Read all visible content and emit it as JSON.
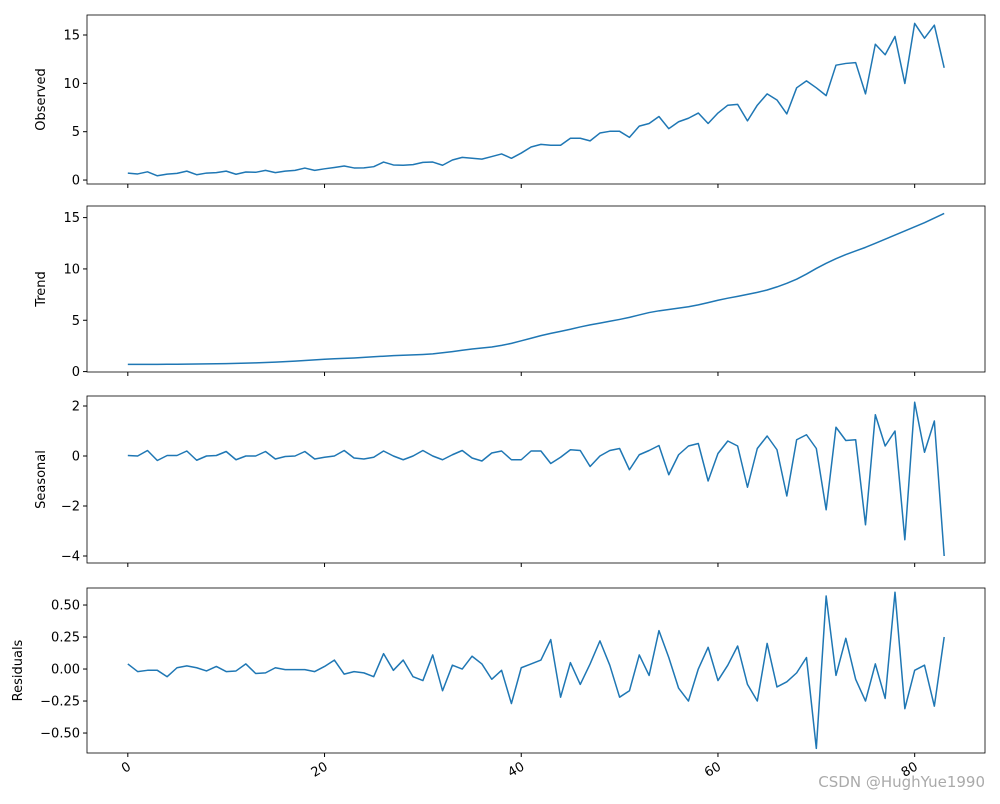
{
  "chart_data": [
    {
      "type": "line",
      "ylabel": "Observed",
      "color": "#1f77b4",
      "x": [
        0,
        1,
        2,
        3,
        4,
        5,
        6,
        7,
        8,
        9,
        10,
        11,
        12,
        13,
        14,
        15,
        16,
        17,
        18,
        19,
        20,
        21,
        22,
        23,
        24,
        25,
        26,
        27,
        28,
        29,
        30,
        31,
        32,
        33,
        34,
        35,
        36,
        37,
        38,
        39,
        40,
        41,
        42,
        43,
        44,
        45,
        46,
        47,
        48,
        49,
        50,
        51,
        52,
        53,
        54,
        55,
        56,
        57,
        58,
        59,
        60,
        61,
        62,
        63,
        64,
        65,
        66,
        67,
        68,
        69,
        70,
        71,
        72,
        73,
        74,
        75,
        76,
        77,
        78,
        79,
        80,
        81,
        82,
        83
      ],
      "values": [
        0.71,
        0.63,
        0.85,
        0.44,
        0.61,
        0.69,
        0.92,
        0.55,
        0.72,
        0.77,
        0.92,
        0.6,
        0.83,
        0.8,
        1,
        0.77,
        0.92,
        1,
        1.24,
        1,
        1.16,
        1.3,
        1.45,
        1.25,
        1.26,
        1.38,
        1.86,
        1.56,
        1.53,
        1.59,
        1.83,
        1.86,
        1.53,
        2.07,
        2.34,
        2.25,
        2.16,
        2.43,
        2.7,
        2.25,
        2.79,
        3.42,
        3.69,
        3.6,
        3.6,
        4.32,
        4.32,
        4.05,
        4.86,
        5.04,
        5.04,
        4.41,
        5.58,
        5.85,
        6.57,
        5.31,
        6.03,
        6.39,
        6.93,
        5.85,
        6.93,
        7.74,
        7.83,
        6.12,
        7.74,
        8.91,
        8.28,
        6.84,
        9.54,
        10.26,
        9.54,
        8.73,
        11.88,
        12.06,
        12.15,
        8.91,
        14.04,
        12.96,
        14.85,
        9.99,
        16.2,
        14.67,
        16.02,
        11.61
      ],
      "xlim": [
        -4.15,
        87.15
      ],
      "ylim": [
        -0.41,
        17.07
      ],
      "yticks": [
        0,
        5,
        10,
        15
      ]
    },
    {
      "type": "line",
      "ylabel": "Trend",
      "color": "#1f77b4",
      "x": [
        0,
        1,
        2,
        3,
        4,
        5,
        6,
        7,
        8,
        9,
        10,
        11,
        12,
        13,
        14,
        15,
        16,
        17,
        18,
        19,
        20,
        21,
        22,
        23,
        24,
        25,
        26,
        27,
        28,
        29,
        30,
        31,
        32,
        33,
        34,
        35,
        36,
        37,
        38,
        39,
        40,
        41,
        42,
        43,
        44,
        45,
        46,
        47,
        48,
        49,
        50,
        51,
        52,
        53,
        54,
        55,
        56,
        57,
        58,
        59,
        60,
        61,
        62,
        63,
        64,
        65,
        66,
        67,
        68,
        69,
        70,
        71,
        72,
        73,
        74,
        75,
        76,
        77,
        78,
        79,
        80,
        81,
        82,
        83
      ],
      "values": [
        0.7,
        0.7,
        0.7,
        0.7,
        0.71,
        0.72,
        0.73,
        0.74,
        0.75,
        0.76,
        0.78,
        0.8,
        0.82,
        0.85,
        0.88,
        0.92,
        0.97,
        1.02,
        1.08,
        1.14,
        1.2,
        1.25,
        1.29,
        1.33,
        1.38,
        1.44,
        1.5,
        1.55,
        1.59,
        1.63,
        1.67,
        1.73,
        1.83,
        1.95,
        2.08,
        2.2,
        2.3,
        2.4,
        2.55,
        2.75,
        3.0,
        3.25,
        3.5,
        3.72,
        3.92,
        4.12,
        4.35,
        4.55,
        4.72,
        4.9,
        5.08,
        5.28,
        5.52,
        5.75,
        5.92,
        6.05,
        6.18,
        6.32,
        6.5,
        6.72,
        6.95,
        7.15,
        7.33,
        7.52,
        7.72,
        7.95,
        8.25,
        8.6,
        9.0,
        9.5,
        10.05,
        10.55,
        11.0,
        11.4,
        11.75,
        12.1,
        12.5,
        12.9,
        13.3,
        13.7,
        14.1,
        14.5,
        14.95,
        15.4
      ],
      "xlim": [
        -4.15,
        87.15
      ],
      "ylim": [
        -0.04,
        16.13
      ],
      "yticks": [
        0,
        5,
        10,
        15
      ]
    },
    {
      "type": "line",
      "ylabel": "Seasonal",
      "color": "#1f77b4",
      "x": [
        0,
        1,
        2,
        3,
        4,
        5,
        6,
        7,
        8,
        9,
        10,
        11,
        12,
        13,
        14,
        15,
        16,
        17,
        18,
        19,
        20,
        21,
        22,
        23,
        24,
        25,
        26,
        27,
        28,
        29,
        30,
        31,
        32,
        33,
        34,
        35,
        36,
        37,
        38,
        39,
        40,
        41,
        42,
        43,
        44,
        45,
        46,
        47,
        48,
        49,
        50,
        51,
        52,
        53,
        54,
        55,
        56,
        57,
        58,
        59,
        60,
        61,
        62,
        63,
        64,
        65,
        66,
        67,
        68,
        69,
        70,
        71,
        72,
        73,
        74,
        75,
        76,
        77,
        78,
        79,
        80,
        81,
        82,
        83
      ],
      "values": [
        0.02,
        0,
        0.22,
        -0.18,
        0.02,
        0.02,
        0.2,
        -0.17,
        0,
        0.02,
        0.18,
        -0.15,
        0,
        0,
        0.18,
        -0.12,
        -0.02,
        0,
        0.18,
        -0.12,
        -0.05,
        0,
        0.22,
        -0.08,
        -0.12,
        -0.05,
        0.2,
        0,
        -0.15,
        0,
        0.22,
        0,
        -0.15,
        0.05,
        0.22,
        -0.08,
        -0.2,
        0.12,
        0.2,
        -0.15,
        -0.15,
        0.2,
        0.2,
        -0.3,
        -0.05,
        0.25,
        0.22,
        -0.42,
        0,
        0.22,
        0.3,
        -0.55,
        0.05,
        0.22,
        0.42,
        -0.75,
        0.05,
        0.4,
        0.5,
        -1,
        0.1,
        0.6,
        0.4,
        -1.25,
        0.3,
        0.8,
        0.25,
        -1.6,
        0.65,
        0.85,
        0.3,
        -2.15,
        1.15,
        0.62,
        0.65,
        -2.75,
        1.65,
        0.4,
        1,
        -3.35,
        2.15,
        0.15,
        1.4,
        -4
      ],
      "xlim": [
        -4.15,
        87.15
      ],
      "ylim": [
        -4.28,
        2.4
      ],
      "yticks": [
        {
          "value": -4,
          "label": "−4"
        },
        {
          "value": -2,
          "label": "−2"
        },
        0,
        2
      ]
    },
    {
      "type": "line",
      "ylabel": "Residuals",
      "color": "#1f77b4",
      "x": [
        0,
        1,
        2,
        3,
        4,
        5,
        6,
        7,
        8,
        9,
        10,
        11,
        12,
        13,
        14,
        15,
        16,
        17,
        18,
        19,
        20,
        21,
        22,
        23,
        24,
        25,
        26,
        27,
        28,
        29,
        30,
        31,
        32,
        33,
        34,
        35,
        36,
        37,
        38,
        39,
        40,
        41,
        42,
        43,
        44,
        45,
        46,
        47,
        48,
        49,
        50,
        51,
        52,
        53,
        54,
        55,
        56,
        57,
        58,
        59,
        60,
        61,
        62,
        63,
        64,
        65,
        66,
        67,
        68,
        69,
        70,
        71,
        72,
        73,
        74,
        75,
        76,
        77,
        78,
        79,
        80,
        81,
        82,
        83
      ],
      "values": [
        0.04,
        -0.02,
        -0.01,
        -0.01,
        -0.06,
        0.01,
        0.025,
        0.01,
        -0.015,
        0.02,
        -0.02,
        -0.015,
        0.04,
        -0.035,
        -0.03,
        0.01,
        -0.005,
        -0.005,
        -0.005,
        -0.02,
        0.02,
        0.07,
        -0.04,
        -0.02,
        -0.03,
        -0.06,
        0.12,
        -0.01,
        0.07,
        -0.06,
        -0.09,
        0.11,
        -0.17,
        0.03,
        0,
        0.1,
        0.04,
        -0.08,
        -0.01,
        -0.27,
        0.01,
        0.04,
        0.07,
        0.23,
        -0.22,
        0.05,
        -0.12,
        0.04,
        0.22,
        0.03,
        -0.22,
        -0.17,
        0.11,
        -0.05,
        0.3,
        0.09,
        -0.15,
        -0.25,
        0,
        0.17,
        -0.09,
        0.03,
        0.18,
        -0.12,
        -0.25,
        0.2,
        -0.14,
        -0.1,
        -0.03,
        0.09,
        -0.62,
        0.57,
        -0.05,
        0.24,
        -0.08,
        -0.25,
        0.04,
        -0.23,
        0.6,
        -0.31,
        -0.01,
        0.03,
        -0.29,
        0.25
      ],
      "xlim": [
        -4.15,
        87.15
      ],
      "ylim": [
        -0.656,
        0.633
      ],
      "yticks": [
        {
          "value": -0.5,
          "label": "−0.50"
        },
        {
          "value": -0.25,
          "label": "−0.25"
        },
        {
          "value": 0,
          "label": "0.00"
        },
        {
          "value": 0.25,
          "label": "0.25"
        },
        {
          "value": 0.5,
          "label": "0.50"
        }
      ],
      "xticks": [
        0,
        20,
        40,
        60,
        80
      ]
    }
  ],
  "watermark": "CSDN @HughYue1990"
}
